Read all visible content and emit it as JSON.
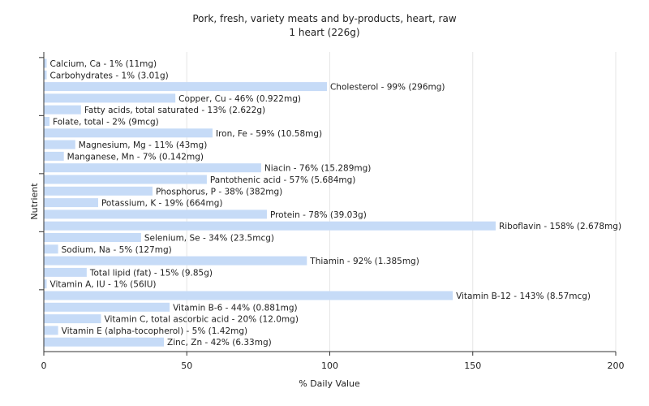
{
  "chart_data": {
    "type": "bar",
    "orientation": "horizontal",
    "title": "Pork, fresh, variety meats and by-products, heart, raw",
    "subtitle": "1 heart (226g)",
    "xlabel": "% Daily Value",
    "ylabel": "Nutrient",
    "xlim": [
      0,
      200
    ],
    "xticks": [
      0,
      50,
      100,
      150,
      200
    ],
    "grid": true,
    "bar_color": "#c6dbf7",
    "categories": [
      "Calcium, Ca",
      "Carbohydrates",
      "Cholesterol",
      "Copper, Cu",
      "Fatty acids, total saturated",
      "Folate, total",
      "Iron, Fe",
      "Magnesium, Mg",
      "Manganese, Mn",
      "Niacin",
      "Pantothenic acid",
      "Phosphorus, P",
      "Potassium, K",
      "Protein",
      "Riboflavin",
      "Selenium, Se",
      "Sodium, Na",
      "Thiamin",
      "Total lipid (fat)",
      "Vitamin A, IU",
      "Vitamin B-12",
      "Vitamin B-6",
      "Vitamin C, total ascorbic acid",
      "Vitamin E (alpha-tocopherol)",
      "Zinc, Zn"
    ],
    "values": [
      1,
      1,
      99,
      46,
      13,
      2,
      59,
      11,
      7,
      76,
      57,
      38,
      19,
      78,
      158,
      34,
      5,
      92,
      15,
      1,
      143,
      44,
      20,
      5,
      42
    ],
    "labels": [
      "Calcium, Ca - 1% (11mg)",
      "Carbohydrates - 1% (3.01g)",
      "Cholesterol - 99% (296mg)",
      "Copper, Cu - 46% (0.922mg)",
      "Fatty acids, total saturated - 13% (2.622g)",
      "Folate, total - 2% (9mcg)",
      "Iron, Fe - 59% (10.58mg)",
      "Magnesium, Mg - 11% (43mg)",
      "Manganese, Mn - 7% (0.142mg)",
      "Niacin - 76% (15.289mg)",
      "Pantothenic acid - 57% (5.684mg)",
      "Phosphorus, P - 38% (382mg)",
      "Potassium, K - 19% (664mg)",
      "Protein - 78% (39.03g)",
      "Riboflavin - 158% (2.678mg)",
      "Selenium, Se - 34% (23.5mcg)",
      "Sodium, Na - 5% (127mg)",
      "Thiamin - 92% (1.385mg)",
      "Total lipid (fat) - 15% (9.85g)",
      "Vitamin A, IU - 1% (56IU)",
      "Vitamin B-12 - 143% (8.57mcg)",
      "Vitamin B-6 - 44% (0.881mg)",
      "Vitamin C, total ascorbic acid - 20% (12.0mg)",
      "Vitamin E (alpha-tocopherol) - 5% (1.42mg)",
      "Zinc, Zn - 42% (6.33mg)"
    ]
  }
}
